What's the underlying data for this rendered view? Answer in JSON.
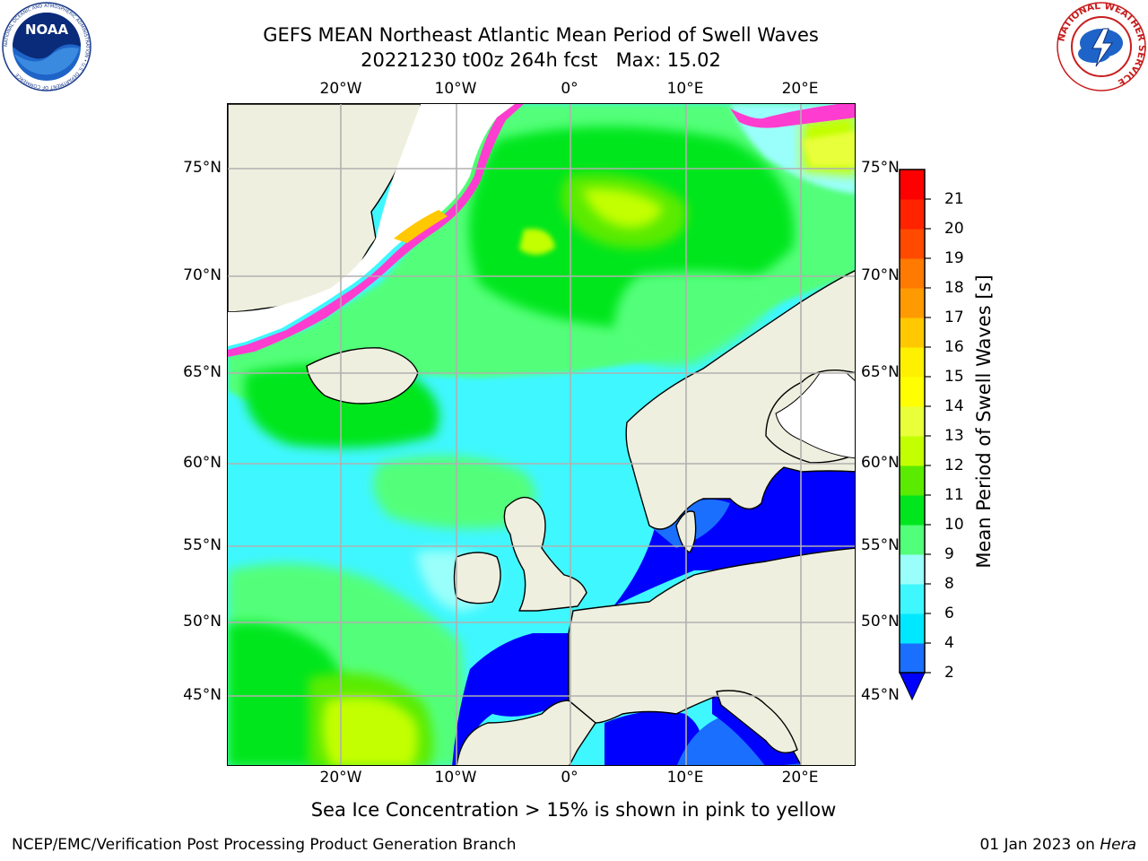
{
  "header": {
    "title_line1": "GEFS MEAN Northeast Atlantic Mean Period of Swell Waves",
    "title_line2": "20221230 t00z 264h fcst   Max: 15.02"
  },
  "logos": {
    "left": "NOAA",
    "left_ring_text": "NATIONAL OCEANIC AND ATMOSPHERIC ADMINISTRATION • U.S. DEPARTMENT OF COMMERCE",
    "right_ring_text": "NATIONAL WEATHER SERVICE"
  },
  "map": {
    "lon_ticks": [
      "20°W",
      "10°W",
      "0°",
      "10°E",
      "20°E"
    ],
    "lat_ticks": [
      "75°N",
      "70°N",
      "65°N",
      "60°N",
      "55°N",
      "50°N",
      "45°N"
    ],
    "colors": {
      "land": "#efefdf",
      "ocean_base": "#3ff7ff",
      "grid": "#b0b0b0",
      "coast": "#000000"
    }
  },
  "colorbar": {
    "title": "Mean Period of Swell Waves [s]",
    "tick_labels": [
      "2",
      "4",
      "6",
      "8",
      "9",
      "10",
      "11",
      "12",
      "13",
      "14",
      "15",
      "16",
      "17",
      "18",
      "19",
      "20",
      "21"
    ],
    "colors": [
      "#1a6fff",
      "#00e8ff",
      "#3ff7ff",
      "#9afffa",
      "#52ff7a",
      "#00e61e",
      "#5aeb00",
      "#c3ff00",
      "#e8ff3a",
      "#ffff00",
      "#fff000",
      "#ffc800",
      "#ff9a00",
      "#ff7a00",
      "#ff4a00",
      "#ff2300",
      "#ff0000"
    ],
    "extend_color": "#0000ff"
  },
  "footnote": "Sea Ice Concentration > 15% is shown in pink to yellow",
  "credits": {
    "left": "NCEP/EMC/Verification Post Processing Product Generation Branch",
    "right_date": "01 Jan 2023 on ",
    "right_machine": "Hera"
  }
}
